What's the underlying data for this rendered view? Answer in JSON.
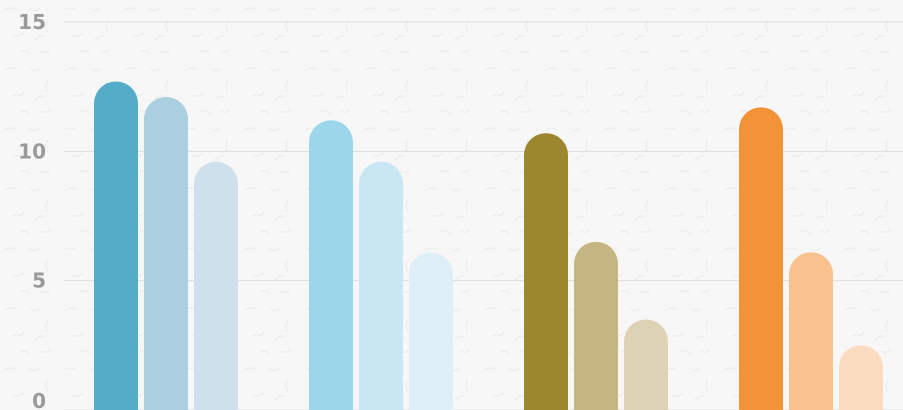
{
  "chart_data": {
    "type": "bar",
    "title": "",
    "xlabel": "",
    "ylabel": "",
    "ylim": [
      0,
      15
    ],
    "yticks": [
      0,
      5,
      10,
      15
    ],
    "grid": true,
    "legend": "none",
    "categories": [
      "",
      "",
      "",
      ""
    ],
    "groups": [
      {
        "values": [
          12.7,
          12.1,
          9.6
        ],
        "colors": [
          "#54acc8",
          "#a9cfe0",
          "#cde0ec"
        ]
      },
      {
        "values": [
          11.2,
          9.6,
          6.1
        ],
        "colors": [
          "#9cd6ea",
          "#c8e7f3",
          "#dfeff7"
        ]
      },
      {
        "values": [
          10.7,
          6.5,
          3.5
        ],
        "colors": [
          "#9c872e",
          "#c5b580",
          "#ddd3b4"
        ]
      },
      {
        "values": [
          11.7,
          6.1,
          2.5
        ],
        "colors": [
          "#f29338",
          "#f7c28d",
          "#fbdcc0"
        ]
      }
    ]
  }
}
